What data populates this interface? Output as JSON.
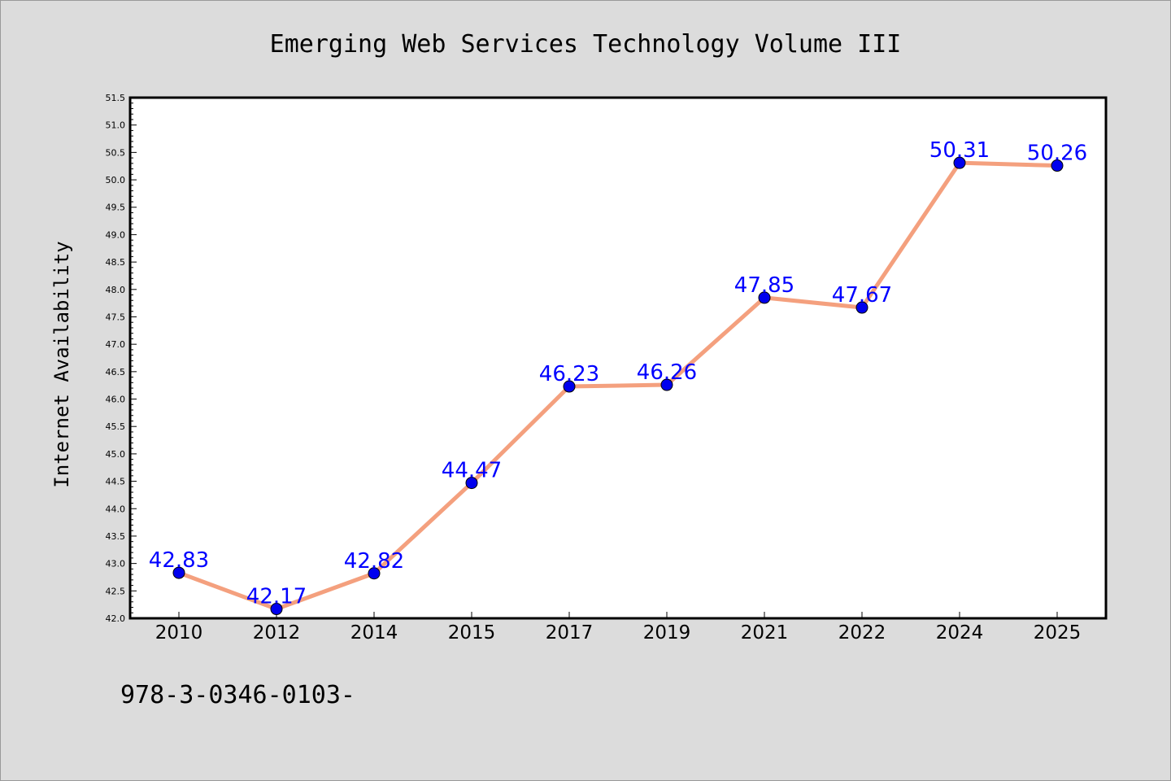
{
  "chart_data": {
    "type": "line",
    "title": "Emerging Web Services Technology Volume III",
    "ylabel": "Internet Availability",
    "xlabel": "",
    "categories": [
      "2010",
      "2012",
      "2014",
      "2015",
      "2017",
      "2019",
      "2021",
      "2022",
      "2024",
      "2025"
    ],
    "series": [
      {
        "values": [
          42.83,
          42.17,
          42.82,
          44.47,
          46.23,
          46.26,
          47.85,
          47.67,
          50.31,
          50.26
        ],
        "data_labels": [
          "42.83",
          "42.17",
          "42.82",
          "44.47",
          "46.23",
          "46.26",
          "47.85",
          "47.67",
          "50.31",
          "50.26"
        ]
      }
    ],
    "ylim": [
      42.0,
      51.5
    ],
    "yticks": [
      "42.0",
      "42.5",
      "43.0",
      "43.5",
      "44.0",
      "44.5",
      "45.0",
      "45.5",
      "46.0",
      "46.5",
      "47.0",
      "47.5",
      "48.0",
      "48.5",
      "49.0",
      "49.5",
      "50.0",
      "50.5",
      "51.0",
      "51.5"
    ],
    "grid": false,
    "legend": "none",
    "colors": {
      "line": "#f4a07e",
      "marker": "#0000ee",
      "label": "#0000ff",
      "plot_bg": "#ffffff",
      "page_bg": "#dcdcdc"
    }
  },
  "footer": {
    "isbn": "978-3-0346-0103-"
  }
}
